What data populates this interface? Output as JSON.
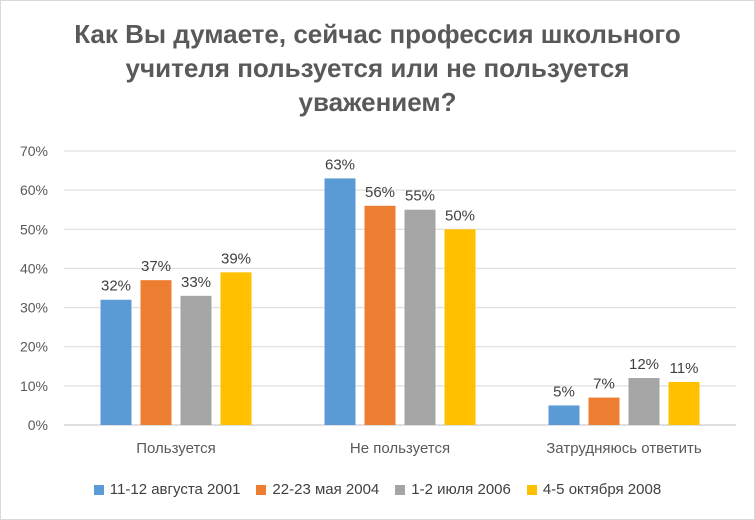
{
  "chart_data": {
    "type": "bar",
    "title_lines": [
      "Как Вы думаете, сейчас профессия школьного",
      "учителя пользуется или не пользуется",
      "уважением?"
    ],
    "categories": [
      "Пользуется",
      "Не пользуется",
      "Затрудняюсь ответить"
    ],
    "series": [
      {
        "name": "11-12 августа 2001",
        "color": "#5b9bd5",
        "values": [
          32,
          63,
          5
        ]
      },
      {
        "name": "22-23 мая 2004",
        "color": "#ed7d31",
        "values": [
          37,
          56,
          7
        ]
      },
      {
        "name": "1-2 июля 2006",
        "color": "#a5a5a5",
        "values": [
          33,
          55,
          12
        ]
      },
      {
        "name": "4-5 октября 2008",
        "color": "#ffc000",
        "values": [
          39,
          50,
          11
        ]
      }
    ],
    "value_suffix": "%",
    "ylim": [
      0,
      70
    ],
    "yticks": [
      0,
      10,
      20,
      30,
      40,
      50,
      60,
      70
    ],
    "ytick_labels": [
      "0%",
      "10%",
      "20%",
      "30%",
      "40%",
      "50%",
      "60%",
      "70%"
    ],
    "grid": true,
    "legend_position": "bottom"
  }
}
